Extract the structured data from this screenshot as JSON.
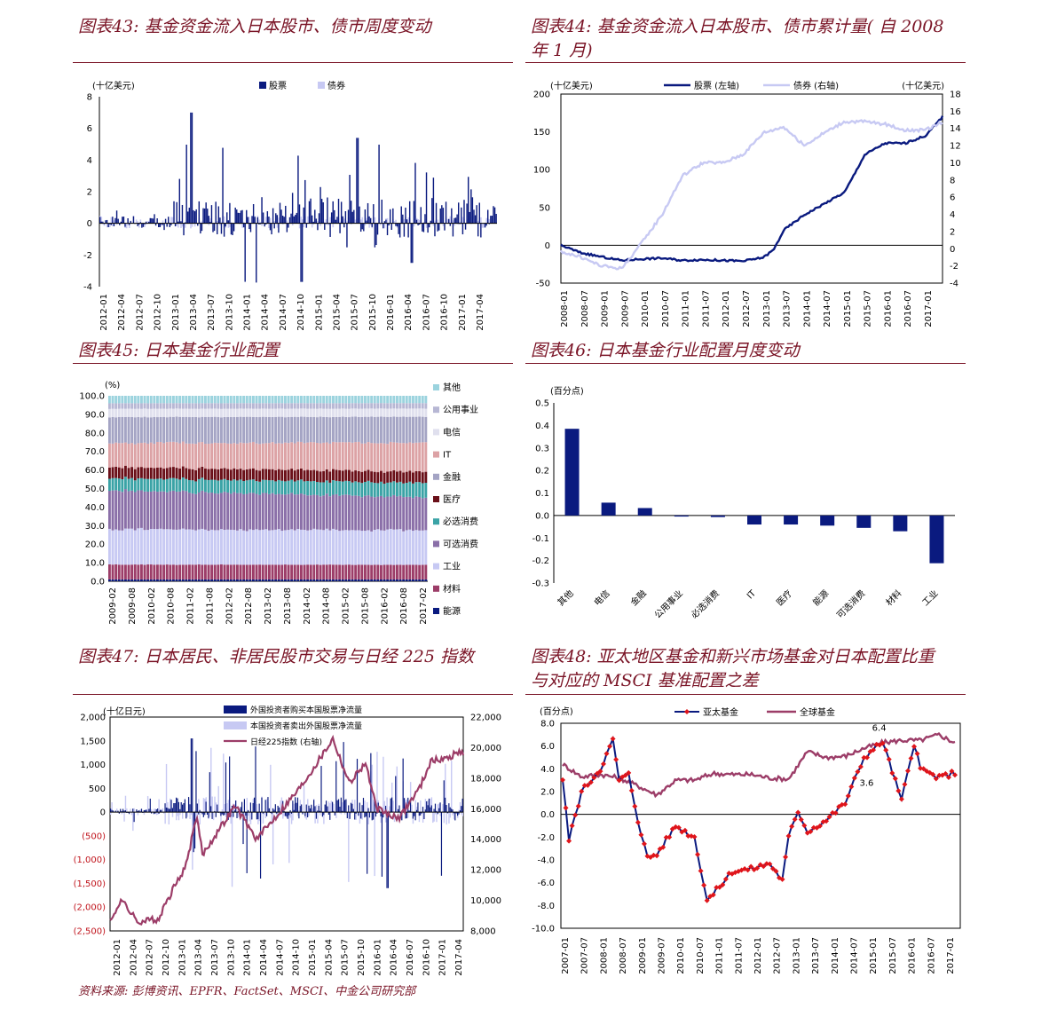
{
  "colors": {
    "title": "#7a1426",
    "navy": "#0a1a7f",
    "lavender": "#c7c9f3",
    "plum": "#9c3d68",
    "red": "#e0151b"
  },
  "titles": {
    "c43": "图表43:  基金资金流入日本股市、债市周度变动",
    "c44": "图表44:  基金资金流入日本股市、债市累计量( 自 2008\n年 1 月)",
    "c45": "图表45:  日本基金行业配置",
    "c46": "图表46:  日本基金行业配置月度变动",
    "c47": "图表47:  日本居民、非居民股市交易与日经 225 指数",
    "c48": "图表48:  亚太地区基金和新兴市场基金对日本配置比重\n与对应的 MSCI 基准配置之差"
  },
  "source_note": "资料来源:  彭博资讯、EPFR、FactSet、MSCI、中金公司研究部",
  "chart_data": [
    {
      "id": "c43",
      "type": "bar",
      "ylabel": "(十亿美元)",
      "ylim": [
        -4,
        8
      ],
      "yticks": [
        "8",
        "6",
        "4",
        "2",
        "0",
        "-2",
        "-4"
      ],
      "xticks": [
        "2012-01",
        "2012-04",
        "2012-07",
        "2012-10",
        "2013-01",
        "2013-04",
        "2013-07",
        "2013-10",
        "2014-01",
        "2014-04",
        "2014-07",
        "2014-10",
        "2015-01",
        "2015-04",
        "2015-07",
        "2015-10",
        "2016-01",
        "2016-04",
        "2016-07",
        "2016-10",
        "2017-01",
        "2017-04"
      ],
      "series": [
        {
          "name": "股票",
          "notable_values": [
            {
              "x": "2013-04",
              "y": 7.0
            },
            {
              "x": "2014-10",
              "y": -3.7
            },
            {
              "x": "2015-07",
              "y": 5.4
            },
            {
              "x": "2016-04",
              "y": -2.5
            }
          ]
        },
        {
          "name": "债券"
        }
      ]
    },
    {
      "id": "c44",
      "type": "line",
      "ylabel": "(十亿美元)",
      "y2label": "(十亿美元)",
      "ylim": [
        -50,
        200
      ],
      "y2lim": [
        -4,
        18
      ],
      "yticks": [
        "200",
        "150",
        "100",
        "50",
        "0",
        "-50"
      ],
      "y2ticks": [
        "18",
        "16",
        "14",
        "12",
        "10",
        "8",
        "6",
        "4",
        "2",
        "0",
        "-2",
        "-4"
      ],
      "xticks": [
        "2008-01",
        "2008-07",
        "2009-01",
        "2009-07",
        "2010-01",
        "2010-07",
        "2011-01",
        "2011-07",
        "2012-01",
        "2012-07",
        "2013-01",
        "2013-07",
        "2014-01",
        "2014-07",
        "2015-01",
        "2015-07",
        "2016-01",
        "2016-07",
        "2017-01"
      ],
      "series": [
        {
          "name": "股票 (左轴)",
          "axis": "left",
          "x": [
            "2008-01",
            "2008-07",
            "2009-03",
            "2009-07",
            "2010-01",
            "2010-07",
            "2011-01",
            "2011-07",
            "2012-01",
            "2012-07",
            "2013-01",
            "2013-04",
            "2013-07",
            "2014-01",
            "2014-07",
            "2015-01",
            "2015-07",
            "2016-01",
            "2016-07",
            "2017-01",
            "2017-06"
          ],
          "values": [
            0,
            -10,
            -17,
            -20,
            -18,
            -17,
            -20,
            -19,
            -20,
            -21,
            -16,
            -6,
            20,
            40,
            55,
            70,
            120,
            135,
            135,
            145,
            170
          ]
        },
        {
          "name": "债券 (右轴)",
          "axis": "right",
          "x": [
            "2008-01",
            "2008-07",
            "2009-01",
            "2009-07",
            "2010-01",
            "2010-07",
            "2011-01",
            "2011-07",
            "2012-01",
            "2012-07",
            "2013-01",
            "2013-07",
            "2014-01",
            "2014-07",
            "2015-01",
            "2015-07",
            "2016-01",
            "2016-07",
            "2017-01",
            "2017-06"
          ],
          "values": [
            -0.3,
            -1.0,
            -2.0,
            -2.3,
            0.7,
            4.0,
            8.5,
            10.0,
            10.0,
            11.0,
            13.5,
            14.2,
            12.0,
            13.5,
            14.8,
            14.8,
            14.5,
            13.8,
            13.8,
            14.8
          ]
        }
      ]
    },
    {
      "id": "c45",
      "type": "area",
      "ylabel": "(%)",
      "ylim": [
        0,
        100
      ],
      "yticks": [
        "100.0",
        "90.0",
        "80.0",
        "70.0",
        "60.0",
        "50.0",
        "40.0",
        "30.0",
        "20.0",
        "10.0",
        "0.0"
      ],
      "xticks": [
        "2009-02",
        "2009-08",
        "2010-02",
        "2010-08",
        "2011-02",
        "2011-08",
        "2012-02",
        "2012-08",
        "2013-02",
        "2013-08",
        "2014-02",
        "2014-08",
        "2015-02",
        "2015-08",
        "2016-02",
        "2016-08",
        "2017-02"
      ],
      "series": [
        {
          "name": "能源",
          "color": "#0a1a7f",
          "values": [
            1.0
          ]
        },
        {
          "name": "材料",
          "color": "#9c3d68",
          "values": [
            8.0
          ]
        },
        {
          "name": "工业",
          "color": "#c7c9f3",
          "values": [
            19.0
          ]
        },
        {
          "name": "可选消费",
          "color": "#8a6fa8",
          "values": [
            21.0
          ]
        },
        {
          "name": "必选消费",
          "color": "#3aa3a6",
          "values": [
            6.5
          ]
        },
        {
          "name": "医疗",
          "color": "#6a0f18",
          "values": [
            6.0
          ]
        },
        {
          "name": "IT",
          "color": "#dca2a5",
          "values": [
            13.0
          ]
        },
        {
          "name": "金融",
          "color": "#a4a4c4",
          "values": [
            14.0
          ]
        },
        {
          "name": "电信",
          "color": "#e0e0ee",
          "values": [
            4.5
          ]
        },
        {
          "name": "公用事业",
          "color": "#b7b7d4",
          "values": [
            3.0
          ]
        },
        {
          "name": "其他",
          "color": "#9bd3de",
          "values": [
            4.0
          ]
        }
      ],
      "legend_order": [
        "其他",
        "公用事业",
        "电信",
        "IT",
        "金融",
        "医疗",
        "必选消费",
        "可选消费",
        "工业",
        "材料",
        "能源"
      ]
    },
    {
      "id": "c46",
      "type": "bar",
      "ylabel": "(百分点)",
      "ylim": [
        -0.3,
        0.5
      ],
      "yticks": [
        "0.5",
        "0.4",
        "0.3",
        "0.2",
        "0.1",
        "0.0",
        "-0.1",
        "-0.2",
        "-0.3"
      ],
      "categories": [
        "其他",
        "电信",
        "金融",
        "公用事业",
        "必选消费",
        "IT",
        "医疗",
        "能源",
        "可选消费",
        "材料",
        "工业"
      ],
      "values": [
        0.385,
        0.057,
        0.033,
        -0.004,
        -0.007,
        -0.04,
        -0.04,
        -0.045,
        -0.055,
        -0.07,
        -0.212
      ]
    },
    {
      "id": "c47",
      "type": "bar",
      "ylabel": "(十亿日元)",
      "ylim": [
        -2500,
        2000
      ],
      "y2lim": [
        8000,
        22000
      ],
      "yticks": [
        "2,000",
        "1,500",
        "1,000",
        "500",
        "0",
        "(500)",
        "(1,000)",
        "(1,500)",
        "(2,000)",
        "(2,500)"
      ],
      "y2ticks": [
        "22,000",
        "20,000",
        "18,000",
        "16,000",
        "14,000",
        "12,000",
        "10,000",
        "8,000"
      ],
      "xticks": [
        "2012-01",
        "2012-04",
        "2012-07",
        "2012-10",
        "2013-01",
        "2013-04",
        "2013-07",
        "2013-10",
        "2014-01",
        "2014-04",
        "2014-07",
        "2014-10",
        "2015-01",
        "2015-04",
        "2015-07",
        "2015-10",
        "2016-01",
        "2016-04",
        "2016-07",
        "2016-10",
        "2017-01",
        "2017-04"
      ],
      "series": [
        {
          "name": "外国投资者购买本国股票净流量"
        },
        {
          "name": "本国投资者卖出外国股票净流量"
        },
        {
          "name": "日经225指数 (右轴)",
          "axis": "right",
          "x": [
            "2012-01",
            "2012-03",
            "2012-06",
            "2012-10",
            "2012-12",
            "2013-03",
            "2013-05",
            "2013-06",
            "2013-12",
            "2014-04",
            "2014-12",
            "2015-04",
            "2015-06",
            "2015-09",
            "2015-12",
            "2016-02",
            "2016-06",
            "2016-10",
            "2016-12",
            "2017-03",
            "2017-05"
          ],
          "values": [
            8500,
            10100,
            8600,
            8800,
            10300,
            12300,
            15600,
            13000,
            16200,
            14000,
            17400,
            19500,
            20600,
            17700,
            19000,
            16000,
            15300,
            17400,
            19100,
            19300,
            19700
          ]
        }
      ]
    },
    {
      "id": "c48",
      "type": "line",
      "ylabel": "(百分点)",
      "ylim": [
        -10,
        8
      ],
      "yticks": [
        "8.0",
        "6.0",
        "4.0",
        "2.0",
        "0.0",
        "-2.0",
        "-4.0",
        "-6.0",
        "-8.0",
        "-10.0"
      ],
      "xticks": [
        "2007-01",
        "2007-07",
        "2008-01",
        "2008-07",
        "2009-01",
        "2009-07",
        "2010-01",
        "2010-07",
        "2011-01",
        "2011-07",
        "2012-01",
        "2012-07",
        "2013-01",
        "2013-07",
        "2014-01",
        "2014-07",
        "2015-01",
        "2015-07",
        "2016-01",
        "2016-07",
        "2017-01"
      ],
      "annotations": [
        {
          "text": "6.4",
          "x": "2015-07",
          "y": 6.4
        },
        {
          "text": "3.6",
          "x": "2015-03",
          "y": 3.6
        }
      ],
      "series": [
        {
          "name": "亚太基金",
          "x": [
            "2007-01",
            "2007-03",
            "2007-07",
            "2008-01",
            "2008-05",
            "2008-07",
            "2008-10",
            "2009-01",
            "2009-04",
            "2009-07",
            "2010-01",
            "2010-07",
            "2010-11",
            "2011-01",
            "2011-07",
            "2012-01",
            "2012-07",
            "2012-11",
            "2013-01",
            "2013-04",
            "2013-07",
            "2014-01",
            "2014-07",
            "2015-01",
            "2015-07",
            "2016-01",
            "2016-05",
            "2016-07",
            "2017-01",
            "2017-05"
          ],
          "values": [
            3.0,
            -2.2,
            2.0,
            4.0,
            6.5,
            3.0,
            3.5,
            -0.5,
            -3.8,
            -3.5,
            -1.0,
            -2.0,
            -7.5,
            -7.0,
            -5.0,
            -4.8,
            -4.3,
            -5.8,
            -2.0,
            0.3,
            -1.5,
            -0.5,
            1.0,
            5.0,
            6.4,
            1.2,
            6.2,
            4.0,
            3.2,
            3.6
          ]
        },
        {
          "name": "全球基金",
          "x": [
            "2007-01",
            "2007-07",
            "2008-01",
            "2008-07",
            "2009-01",
            "2009-07",
            "2010-01",
            "2010-07",
            "2011-01",
            "2011-07",
            "2012-01",
            "2012-07",
            "2013-01",
            "2013-07",
            "2014-01",
            "2014-07",
            "2015-01",
            "2015-07",
            "2016-01",
            "2016-07",
            "2017-01",
            "2017-05"
          ],
          "values": [
            4.4,
            3.3,
            3.5,
            3.2,
            2.5,
            1.7,
            3.0,
            3.0,
            3.6,
            3.5,
            3.5,
            3.2,
            3.1,
            5.5,
            5.0,
            5.1,
            5.8,
            6.3,
            6.5,
            6.5,
            7.0,
            6.4
          ]
        }
      ]
    }
  ]
}
